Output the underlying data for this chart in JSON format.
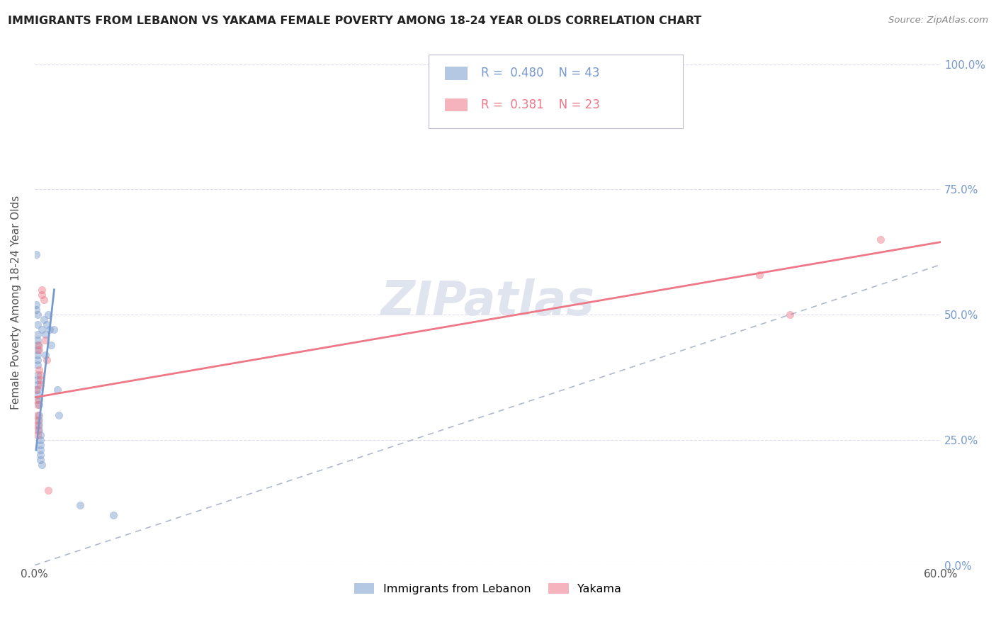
{
  "title": "IMMIGRANTS FROM LEBANON VS YAKAMA FEMALE POVERTY AMONG 18-24 YEAR OLDS CORRELATION CHART",
  "source_text": "Source: ZipAtlas.com",
  "ylabel": "Female Poverty Among 18-24 Year Olds",
  "xlim": [
    0.0,
    0.6
  ],
  "ylim": [
    0.0,
    1.05
  ],
  "xtick_positions": [
    0.0,
    0.6
  ],
  "xtick_labels": [
    "0.0%",
    "60.0%"
  ],
  "ytick_positions": [
    0.0,
    0.25,
    0.5,
    0.75,
    1.0
  ],
  "ytick_labels_right": [
    "0.0%",
    "25.0%",
    "50.0%",
    "75.0%",
    "100.0%"
  ],
  "blue_color": "#7799cc",
  "pink_color": "#ee7788",
  "diag_line_color": "#b0b8cc",
  "blue_scatter": [
    [
      0.001,
      0.62
    ],
    [
      0.001,
      0.52
    ],
    [
      0.001,
      0.51
    ],
    [
      0.002,
      0.5
    ],
    [
      0.002,
      0.48
    ],
    [
      0.002,
      0.46
    ],
    [
      0.002,
      0.45
    ],
    [
      0.002,
      0.44
    ],
    [
      0.002,
      0.43
    ],
    [
      0.002,
      0.42
    ],
    [
      0.002,
      0.41
    ],
    [
      0.002,
      0.4
    ],
    [
      0.002,
      0.38
    ],
    [
      0.002,
      0.37
    ],
    [
      0.002,
      0.36
    ],
    [
      0.002,
      0.35
    ],
    [
      0.002,
      0.34
    ],
    [
      0.003,
      0.33
    ],
    [
      0.003,
      0.32
    ],
    [
      0.003,
      0.3
    ],
    [
      0.003,
      0.29
    ],
    [
      0.003,
      0.28
    ],
    [
      0.003,
      0.27
    ],
    [
      0.004,
      0.26
    ],
    [
      0.004,
      0.25
    ],
    [
      0.004,
      0.24
    ],
    [
      0.004,
      0.23
    ],
    [
      0.004,
      0.22
    ],
    [
      0.004,
      0.21
    ],
    [
      0.005,
      0.2
    ],
    [
      0.005,
      0.47
    ],
    [
      0.006,
      0.49
    ],
    [
      0.007,
      0.46
    ],
    [
      0.007,
      0.42
    ],
    [
      0.008,
      0.48
    ],
    [
      0.009,
      0.5
    ],
    [
      0.01,
      0.47
    ],
    [
      0.011,
      0.44
    ],
    [
      0.013,
      0.47
    ],
    [
      0.015,
      0.35
    ],
    [
      0.016,
      0.3
    ],
    [
      0.03,
      0.12
    ],
    [
      0.052,
      0.1
    ]
  ],
  "pink_scatter": [
    [
      0.001,
      0.35
    ],
    [
      0.001,
      0.33
    ],
    [
      0.002,
      0.32
    ],
    [
      0.002,
      0.3
    ],
    [
      0.002,
      0.29
    ],
    [
      0.002,
      0.28
    ],
    [
      0.002,
      0.27
    ],
    [
      0.002,
      0.26
    ],
    [
      0.003,
      0.44
    ],
    [
      0.003,
      0.43
    ],
    [
      0.003,
      0.39
    ],
    [
      0.004,
      0.38
    ],
    [
      0.004,
      0.37
    ],
    [
      0.004,
      0.36
    ],
    [
      0.005,
      0.55
    ],
    [
      0.005,
      0.54
    ],
    [
      0.006,
      0.53
    ],
    [
      0.007,
      0.45
    ],
    [
      0.008,
      0.41
    ],
    [
      0.009,
      0.15
    ],
    [
      0.48,
      0.58
    ],
    [
      0.5,
      0.5
    ],
    [
      0.56,
      0.65
    ]
  ],
  "blue_line_x": [
    0.001,
    0.013
  ],
  "blue_line_y": [
    0.23,
    0.55
  ],
  "pink_line_x": [
    0.0,
    0.6
  ],
  "pink_line_y": [
    0.335,
    0.645
  ],
  "legend_r1": "R =  0.480",
  "legend_n1": "N = 43",
  "legend_r2": "R =  0.381",
  "legend_n2": "N = 23",
  "bottom_legend_labels": [
    "Immigrants from Lebanon",
    "Yakama"
  ]
}
